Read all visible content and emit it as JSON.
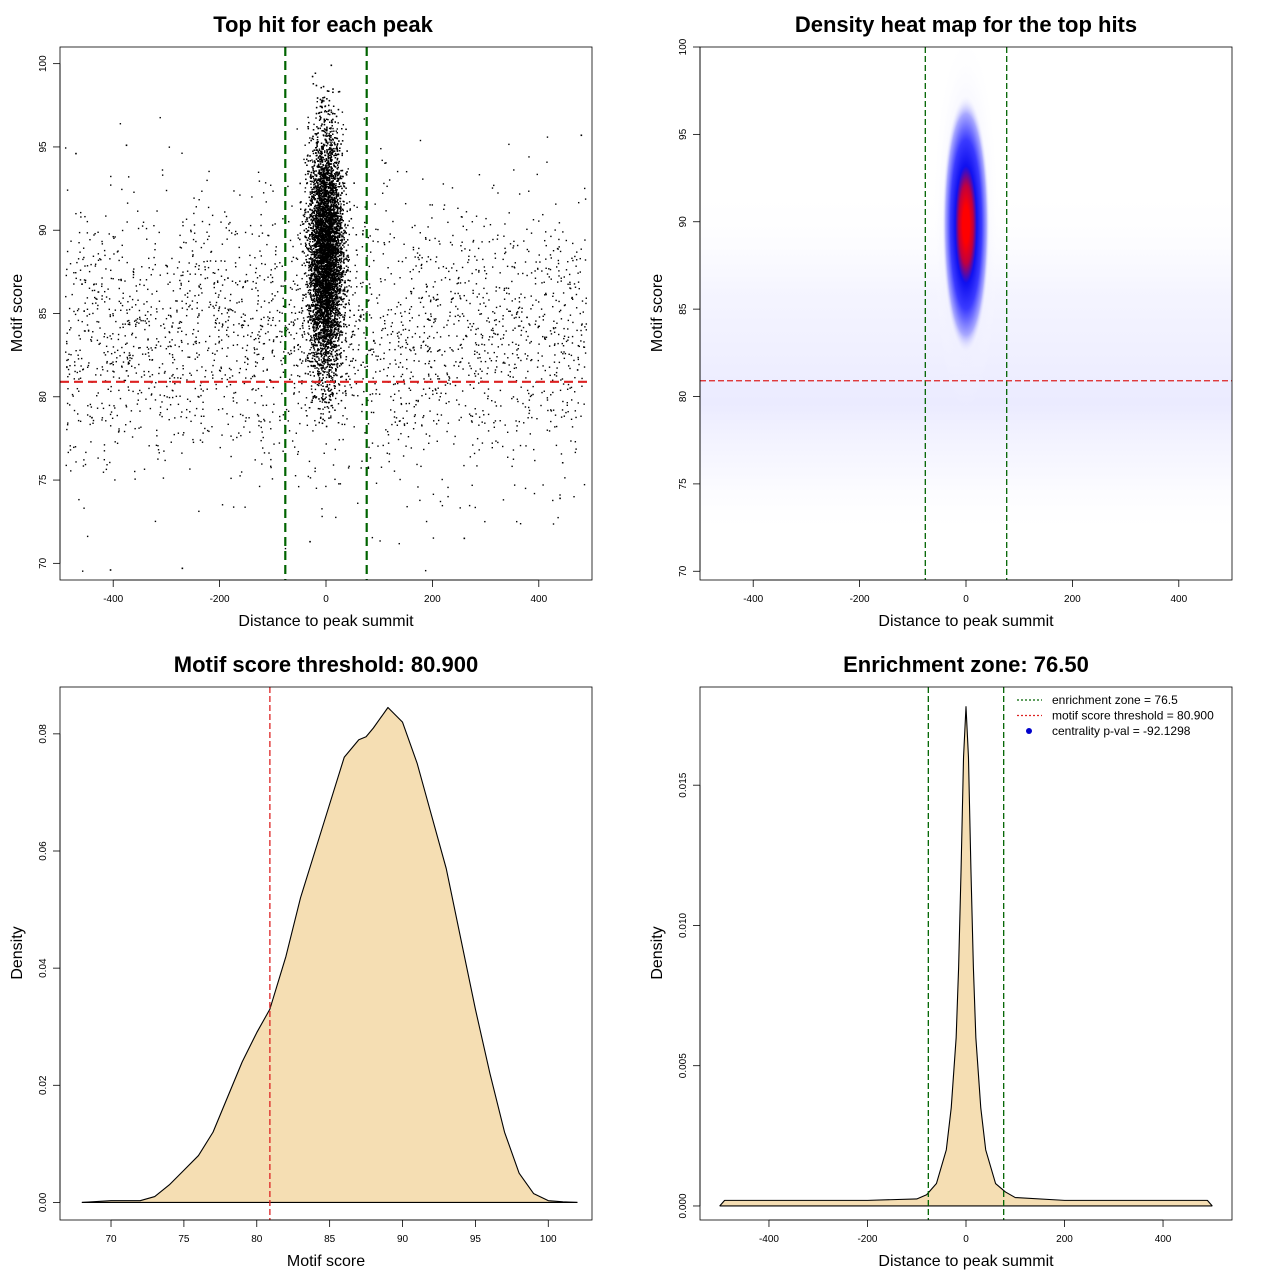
{
  "chart_data": [
    {
      "type": "scatter",
      "title": "Top hit for each peak",
      "xlabel": "Distance to peak summit",
      "ylabel": "Motif score",
      "xlim": [
        -500,
        500
      ],
      "ylim": [
        69,
        101
      ],
      "xticks": [
        -400,
        -200,
        0,
        200,
        400
      ],
      "yticks": [
        70,
        75,
        80,
        85,
        90,
        95,
        100
      ],
      "point_color": "#000000",
      "background_points": {
        "count": 2600,
        "x_range": [
          -490,
          490
        ],
        "y_mean": 83.5,
        "y_sd": 4.2
      },
      "central_cluster": {
        "count": 9000,
        "x_mean": 0,
        "x_sd": 16,
        "y_mean": 88.5,
        "y_sd": 3.6
      },
      "sample_points": [
        {
          "x": -405,
          "y": 69.6
        },
        {
          "x": -270,
          "y": 69.7
        },
        {
          "x": 260,
          "y": 71.5
        },
        {
          "x": -30,
          "y": 71.3
        },
        {
          "x": 10,
          "y": 99.9
        },
        {
          "x": 480,
          "y": 95.7
        },
        {
          "x": -470,
          "y": 94.6
        },
        {
          "x": -375,
          "y": 95.1
        },
        {
          "x": 440,
          "y": 73.9
        }
      ],
      "vlines": [
        {
          "x": -76.5,
          "color": "#006400",
          "style": "dashed"
        },
        {
          "x": 76.5,
          "color": "#006400",
          "style": "dashed"
        }
      ],
      "hlines": [
        {
          "y": 80.9,
          "color": "#dd2222",
          "style": "dashed"
        }
      ]
    },
    {
      "type": "heatmap",
      "title": "Density heat map for the top hits",
      "xlabel": "Distance to peak summit",
      "ylabel": "Motif score",
      "xlim": [
        -500,
        500
      ],
      "ylim": [
        69.5,
        100
      ],
      "xticks": [
        -400,
        -200,
        0,
        200,
        400
      ],
      "yticks": [
        70,
        75,
        80,
        85,
        90,
        95,
        100
      ],
      "colormap": [
        "#ffffff",
        "#0000ff",
        "#ff0000"
      ],
      "hotspot": {
        "x": 0,
        "y": 89.5
      },
      "vlines": [
        {
          "x": -76.5,
          "color": "#006400",
          "style": "dashed"
        },
        {
          "x": 76.5,
          "color": "#006400",
          "style": "dashed"
        }
      ],
      "hlines": [
        {
          "y": 80.9,
          "color": "#dd2222",
          "style": "dashed"
        }
      ]
    },
    {
      "type": "area",
      "title": "Motif score threshold: 80.900",
      "xlabel": "Motif score",
      "ylabel": "Density",
      "xlim": [
        66.5,
        103
      ],
      "ylim": [
        -0.003,
        0.088
      ],
      "xticks": [
        70,
        75,
        80,
        85,
        90,
        95,
        100
      ],
      "yticks": [
        0.0,
        0.02,
        0.04,
        0.06,
        0.08
      ],
      "ytick_labels": [
        "0.00",
        "0.02",
        "0.04",
        "0.06",
        "0.08"
      ],
      "fill_color": "#f5deb3",
      "x": [
        68,
        70,
        72,
        73,
        74,
        75,
        76,
        77,
        78,
        79,
        80,
        80.9,
        82,
        83,
        84,
        85,
        86,
        87,
        87.5,
        88,
        89,
        90,
        91,
        92,
        93,
        94,
        95,
        96,
        97,
        98,
        99,
        100,
        101,
        102
      ],
      "y": [
        0.0,
        0.0003,
        0.0003,
        0.001,
        0.003,
        0.0055,
        0.008,
        0.012,
        0.018,
        0.024,
        0.029,
        0.033,
        0.042,
        0.052,
        0.06,
        0.068,
        0.076,
        0.079,
        0.0795,
        0.081,
        0.0845,
        0.082,
        0.075,
        0.066,
        0.057,
        0.045,
        0.033,
        0.022,
        0.012,
        0.005,
        0.0015,
        0.0003,
        0.0001,
        0.0
      ],
      "vlines": [
        {
          "x": 80.9,
          "color": "#dd2222",
          "style": "dashed"
        }
      ]
    },
    {
      "type": "area",
      "title": "Enrichment zone: 76.50",
      "xlabel": "Distance to peak summit",
      "ylabel": "Density",
      "xlim": [
        -540,
        540
      ],
      "ylim": [
        -0.0005,
        0.0185
      ],
      "xticks": [
        -400,
        -200,
        0,
        200,
        400
      ],
      "yticks": [
        0.0,
        0.005,
        0.01,
        0.015
      ],
      "ytick_labels": [
        "0.000",
        "0.005",
        "0.010",
        "0.015"
      ],
      "fill_color": "#f5deb3",
      "x": [
        -500,
        -490,
        -400,
        -300,
        -200,
        -100,
        -80,
        -60,
        -40,
        -30,
        -20,
        -15,
        -10,
        -5,
        0,
        5,
        10,
        15,
        20,
        30,
        40,
        60,
        80,
        100,
        200,
        300,
        400,
        490,
        500
      ],
      "y": [
        0.0,
        0.0002,
        0.0002,
        0.0002,
        0.0002,
        0.00025,
        0.0004,
        0.0008,
        0.002,
        0.0035,
        0.006,
        0.0085,
        0.012,
        0.016,
        0.0178,
        0.016,
        0.012,
        0.0085,
        0.006,
        0.0035,
        0.002,
        0.0008,
        0.0005,
        0.0003,
        0.0002,
        0.0002,
        0.0002,
        0.0002,
        0.0
      ],
      "vlines": [
        {
          "x": -76.5,
          "color": "#006400",
          "style": "dashed"
        },
        {
          "x": 76.5,
          "color": "#006400",
          "style": "dashed"
        }
      ],
      "legend": {
        "position": "top-right",
        "entries": [
          {
            "label": "enrichment zone = 76.5",
            "color": "#006400",
            "style": "dotted-line"
          },
          {
            "label": "motif score threshold = 80.900",
            "color": "#dd2222",
            "style": "dotted-line"
          },
          {
            "label": "centrality p-val = -92.1298",
            "color": "#0000cc",
            "style": "dot"
          }
        ]
      }
    }
  ]
}
